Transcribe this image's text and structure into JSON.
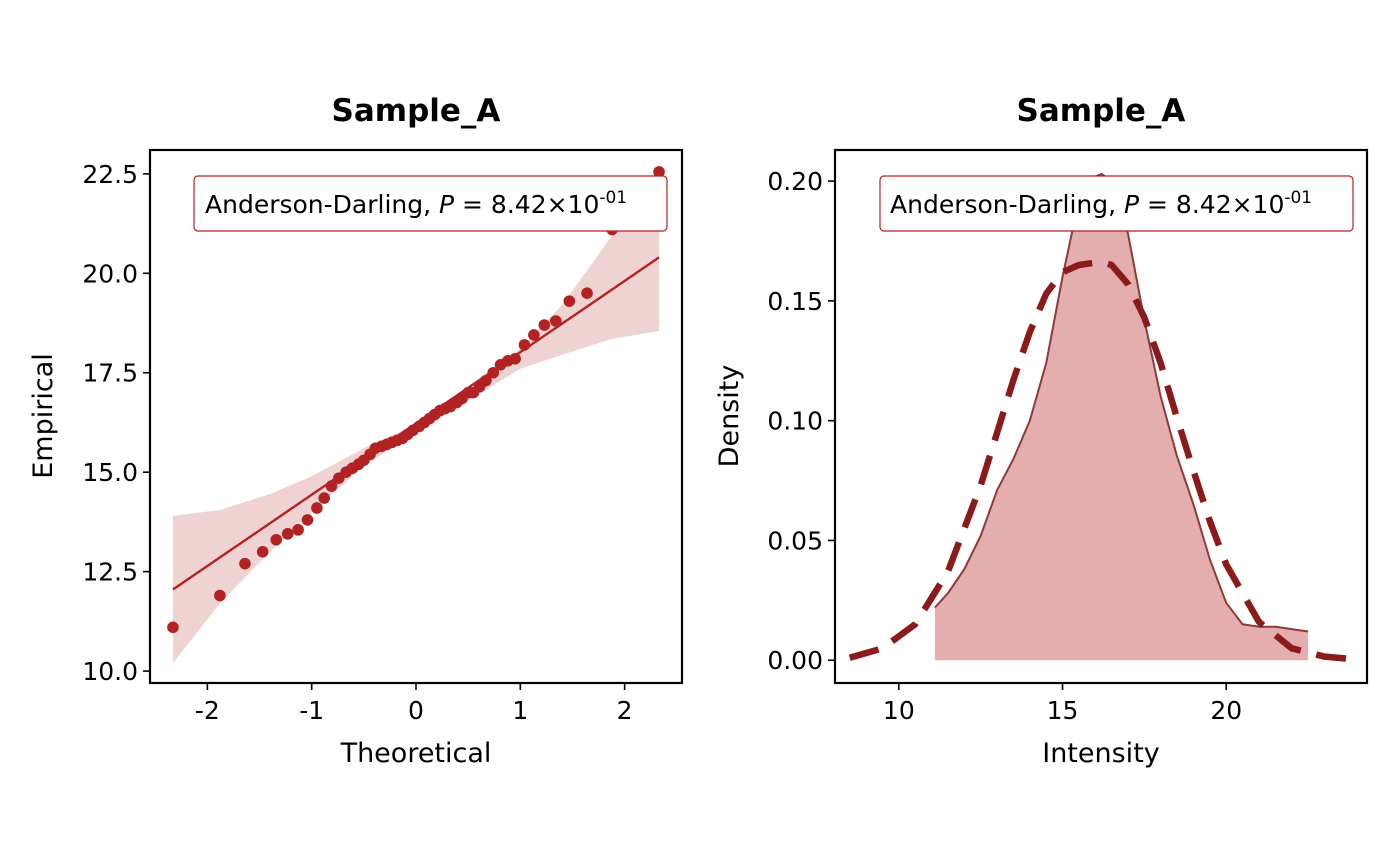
{
  "colors": {
    "accent": "#B22222",
    "band": "#EFD3D3",
    "density_fill": "#E5AEAE",
    "density_line": "#8E3A3A",
    "normal_curve": "#8B1A1A"
  },
  "chart_data": [
    {
      "type": "scatter",
      "title": "Sample_A",
      "xlabel": "Theoretical",
      "ylabel": "Empirical",
      "xlim": [
        -2.55,
        2.55
      ],
      "ylim": [
        9.7,
        23.1
      ],
      "xticks": [
        -2,
        -1,
        0,
        1,
        2
      ],
      "xtick_labels": [
        "-2",
        "-1",
        "0",
        "1",
        "2"
      ],
      "yticks": [
        10.0,
        12.5,
        15.0,
        17.5,
        20.0,
        22.5
      ],
      "ytick_labels": [
        "10.0",
        "12.5",
        "15.0",
        "17.5",
        "20.0",
        "22.5"
      ],
      "grid": false,
      "annotation": {
        "prefix": "Anderson-Darling, ",
        "pvar": "P",
        "equals": " = 8.42×10",
        "exponent": "-01"
      },
      "points": {
        "x": [
          -2.33,
          -1.88,
          -1.64,
          -1.47,
          -1.34,
          -1.23,
          -1.13,
          -1.04,
          -0.95,
          -0.88,
          -0.81,
          -0.74,
          -0.67,
          -0.61,
          -0.55,
          -0.5,
          -0.44,
          -0.39,
          -0.33,
          -0.28,
          -0.23,
          -0.18,
          -0.13,
          -0.08,
          -0.03,
          0.03,
          0.08,
          0.13,
          0.18,
          0.23,
          0.28,
          0.33,
          0.39,
          0.44,
          0.5,
          0.55,
          0.61,
          0.67,
          0.74,
          0.81,
          0.88,
          0.95,
          1.04,
          1.13,
          1.23,
          1.34,
          1.47,
          1.64,
          1.88,
          2.33
        ],
        "y": [
          11.1,
          11.9,
          12.7,
          13.0,
          13.3,
          13.45,
          13.55,
          13.8,
          14.1,
          14.35,
          14.65,
          14.85,
          15.0,
          15.1,
          15.2,
          15.3,
          15.45,
          15.6,
          15.65,
          15.7,
          15.75,
          15.8,
          15.85,
          15.95,
          16.05,
          16.15,
          16.25,
          16.35,
          16.45,
          16.55,
          16.6,
          16.65,
          16.75,
          16.85,
          17.0,
          17.0,
          17.15,
          17.3,
          17.5,
          17.7,
          17.8,
          17.85,
          18.2,
          18.45,
          18.7,
          18.8,
          19.3,
          19.5,
          21.1,
          22.55
        ]
      },
      "fit_line": {
        "x": [
          -2.33,
          2.33
        ],
        "y": [
          12.05,
          20.4
        ]
      },
      "confidence_band": {
        "x": [
          -2.33,
          -1.88,
          -1.4,
          -1.0,
          -0.5,
          0.0,
          0.5,
          1.0,
          1.4,
          1.88,
          2.33
        ],
        "lower": [
          10.2,
          11.7,
          13.0,
          14.0,
          15.15,
          16.0,
          16.8,
          17.6,
          17.95,
          18.35,
          18.55
        ],
        "upper": [
          13.9,
          14.05,
          14.45,
          14.9,
          15.6,
          16.2,
          17.1,
          18.1,
          19.2,
          20.95,
          22.0
        ]
      }
    },
    {
      "type": "area",
      "title": "Sample_A",
      "xlabel": "Intensity",
      "ylabel": "Density",
      "xlim": [
        8.05,
        24.3
      ],
      "ylim": [
        -0.0095,
        0.213
      ],
      "xticks": [
        10,
        15,
        20
      ],
      "xtick_labels": [
        "10",
        "15",
        "20"
      ],
      "yticks": [
        0.0,
        0.05,
        0.1,
        0.15,
        0.2
      ],
      "ytick_labels": [
        "0.00",
        "0.05",
        "0.10",
        "0.15",
        "0.20"
      ],
      "grid": false,
      "annotation": {
        "prefix": "Anderson-Darling, ",
        "pvar": "P",
        "equals": " = 8.42×10",
        "exponent": "-01"
      },
      "density": {
        "x": [
          11.1,
          11.5,
          12.0,
          12.5,
          13.0,
          13.5,
          14.0,
          14.5,
          15.0,
          15.5,
          16.0,
          16.2,
          16.5,
          17.0,
          17.5,
          18.0,
          18.5,
          19.0,
          19.5,
          20.0,
          20.5,
          21.0,
          21.5,
          22.0,
          22.5
        ],
        "y": [
          0.022,
          0.028,
          0.038,
          0.052,
          0.071,
          0.084,
          0.1,
          0.124,
          0.16,
          0.192,
          0.202,
          0.203,
          0.2,
          0.178,
          0.142,
          0.11,
          0.085,
          0.065,
          0.042,
          0.024,
          0.015,
          0.014,
          0.014,
          0.013,
          0.012
        ]
      },
      "normal_fit": {
        "x": [
          8.5,
          9.5,
          10.5,
          11.5,
          12.5,
          13.0,
          13.5,
          14.0,
          14.5,
          15.0,
          15.5,
          16.0,
          16.25,
          16.5,
          17.0,
          17.5,
          18.0,
          18.5,
          19.0,
          19.5,
          20.0,
          21.0,
          22.0,
          23.0,
          24.0
        ],
        "y": [
          0.001,
          0.005,
          0.015,
          0.037,
          0.073,
          0.095,
          0.117,
          0.137,
          0.153,
          0.162,
          0.165,
          0.166,
          0.166,
          0.165,
          0.157,
          0.143,
          0.124,
          0.101,
          0.079,
          0.058,
          0.04,
          0.016,
          0.005,
          0.0015,
          0.0003
        ]
      }
    }
  ]
}
